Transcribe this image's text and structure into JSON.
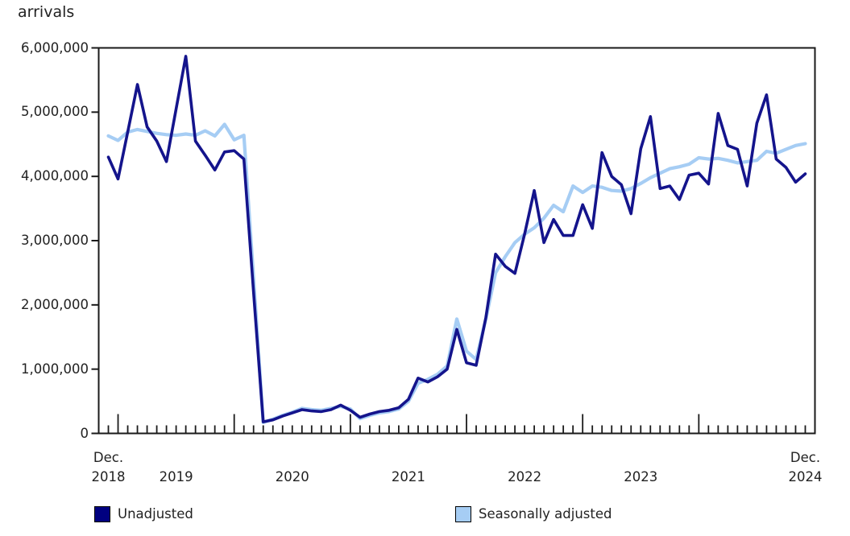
{
  "chart_data": {
    "type": "line",
    "ylabel_title": "arrivals",
    "ylim": [
      0,
      6000000
    ],
    "grid": "off",
    "legend_position": "bottom",
    "y_ticks": [
      {
        "value": 0,
        "label": "0"
      },
      {
        "value": 1000000,
        "label": "1,000,000"
      },
      {
        "value": 2000000,
        "label": "2,000,000"
      },
      {
        "value": 3000000,
        "label": "3,000,000"
      },
      {
        "value": 4000000,
        "label": "4,000,000"
      },
      {
        "value": 5000000,
        "label": "5,000,000"
      },
      {
        "value": 6000000,
        "label": "6,000,000"
      }
    ],
    "x_axis_labels": [
      {
        "month_index": 0,
        "line1": "Dec.",
        "line2": "2018"
      },
      {
        "month_index": 7,
        "line1": "",
        "line2": "2019"
      },
      {
        "month_index": 19,
        "line1": "",
        "line2": "2020"
      },
      {
        "month_index": 31,
        "line1": "",
        "line2": "2021"
      },
      {
        "month_index": 43,
        "line1": "",
        "line2": "2022"
      },
      {
        "month_index": 55,
        "line1": "",
        "line2": "2023"
      },
      {
        "month_index": 72,
        "line1": "Dec.",
        "line2": "2024"
      }
    ],
    "categories": [
      "Dec 2018",
      "Jan 2019",
      "Feb 2019",
      "Mar 2019",
      "Apr 2019",
      "May 2019",
      "Jun 2019",
      "Jul 2019",
      "Aug 2019",
      "Sep 2019",
      "Oct 2019",
      "Nov 2019",
      "Dec 2019",
      "Jan 2020",
      "Feb 2020",
      "Mar 2020",
      "Apr 2020",
      "May 2020",
      "Jun 2020",
      "Jul 2020",
      "Aug 2020",
      "Sep 2020",
      "Oct 2020",
      "Nov 2020",
      "Dec 2020",
      "Jan 2021",
      "Feb 2021",
      "Mar 2021",
      "Apr 2021",
      "May 2021",
      "Jun 2021",
      "Jul 2021",
      "Aug 2021",
      "Sep 2021",
      "Oct 2021",
      "Nov 2021",
      "Dec 2021",
      "Jan 2022",
      "Feb 2022",
      "Mar 2022",
      "Apr 2022",
      "May 2022",
      "Jun 2022",
      "Jul 2022",
      "Aug 2022",
      "Sep 2022",
      "Oct 2022",
      "Nov 2022",
      "Dec 2022",
      "Jan 2023",
      "Feb 2023",
      "Mar 2023",
      "Apr 2023",
      "May 2023",
      "Jun 2023",
      "Jul 2023",
      "Aug 2023",
      "Sep 2023",
      "Oct 2023",
      "Nov 2023",
      "Dec 2023",
      "Jan 2024",
      "Feb 2024",
      "Mar 2024",
      "Apr 2024",
      "May 2024",
      "Jun 2024",
      "Jul 2024",
      "Aug 2024",
      "Sep 2024",
      "Oct 2024",
      "Nov 2024",
      "Dec 2024"
    ],
    "series": [
      {
        "name": "Unadjusted",
        "color": "#14148c",
        "line_width": 3.6,
        "values": [
          4300000,
          3960000,
          4690000,
          5430000,
          4770000,
          4550000,
          4230000,
          5050000,
          5870000,
          4550000,
          4330000,
          4100000,
          4380000,
          4400000,
          4270000,
          2200000,
          180000,
          210000,
          270000,
          320000,
          370000,
          350000,
          340000,
          370000,
          440000,
          360000,
          250000,
          300000,
          340000,
          360000,
          400000,
          530000,
          860000,
          800000,
          880000,
          1000000,
          1620000,
          1100000,
          1060000,
          1800000,
          2790000,
          2600000,
          2490000,
          3100000,
          3780000,
          2970000,
          3330000,
          3080000,
          3080000,
          3560000,
          3190000,
          4370000,
          4000000,
          3870000,
          3420000,
          4430000,
          4930000,
          3810000,
          3850000,
          3640000,
          4020000,
          4050000,
          3880000,
          4980000,
          4480000,
          4420000,
          3850000,
          4830000,
          5270000,
          4270000,
          4140000,
          3910000,
          4040000
        ]
      },
      {
        "name": "Seasonally adjusted",
        "color": "#a6cdf4",
        "line_width": 4.2,
        "values": [
          4630000,
          4560000,
          4690000,
          4730000,
          4700000,
          4670000,
          4650000,
          4640000,
          4660000,
          4640000,
          4710000,
          4630000,
          4810000,
          4570000,
          4640000,
          2420000,
          170000,
          220000,
          280000,
          330000,
          390000,
          370000,
          360000,
          390000,
          420000,
          380000,
          230000,
          280000,
          320000,
          340000,
          380000,
          500000,
          780000,
          840000,
          920000,
          1050000,
          1780000,
          1280000,
          1150000,
          1780000,
          2500000,
          2750000,
          2970000,
          3100000,
          3200000,
          3350000,
          3550000,
          3450000,
          3850000,
          3750000,
          3850000,
          3830000,
          3780000,
          3770000,
          3810000,
          3890000,
          3980000,
          4050000,
          4120000,
          4150000,
          4190000,
          4290000,
          4270000,
          4280000,
          4250000,
          4210000,
          4230000,
          4250000,
          4390000,
          4360000,
          4420000,
          4480000,
          4510000
        ]
      }
    ]
  }
}
